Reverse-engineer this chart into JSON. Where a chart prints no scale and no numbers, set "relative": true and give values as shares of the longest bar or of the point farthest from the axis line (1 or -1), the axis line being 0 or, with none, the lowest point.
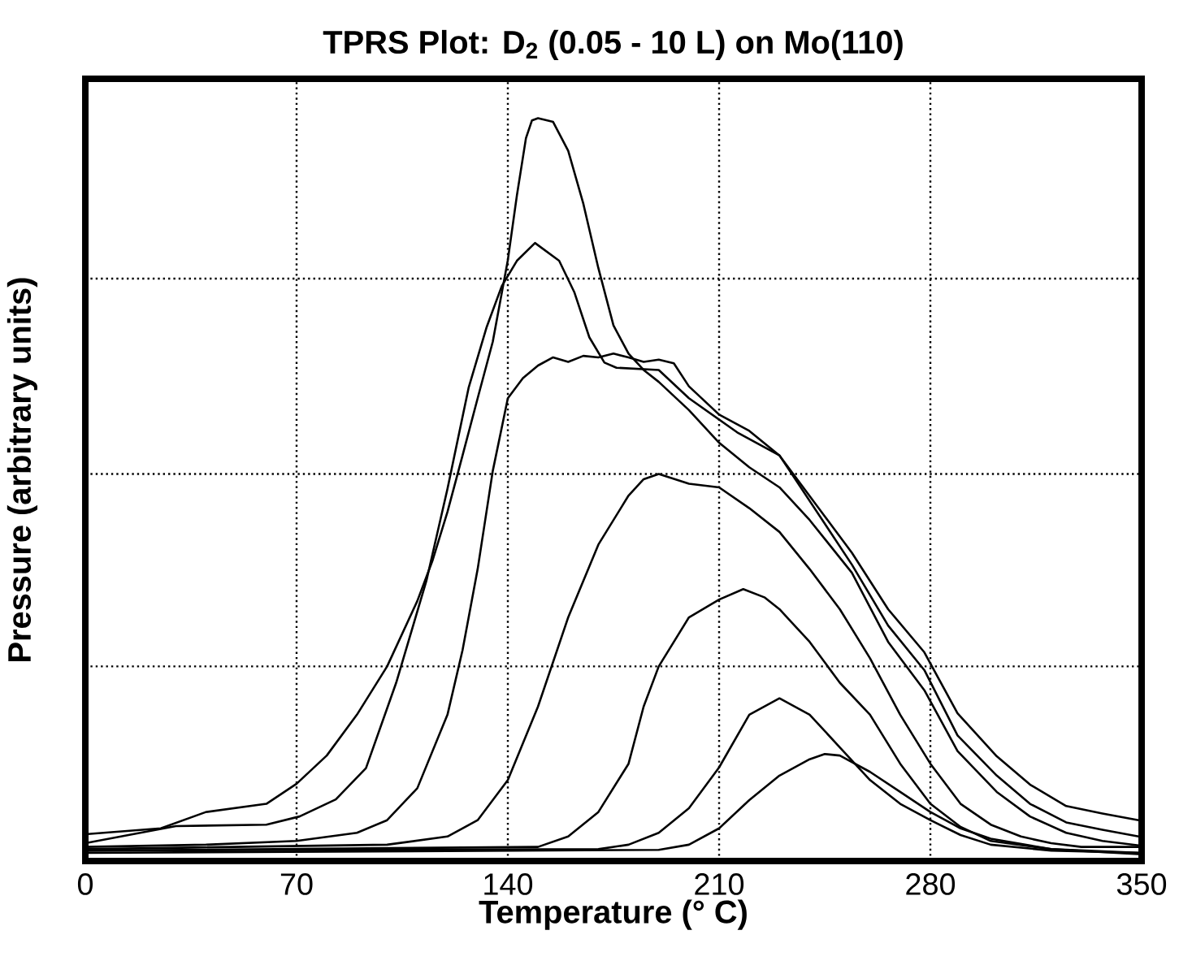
{
  "chart_data": {
    "type": "line",
    "title": "TPRS Plot: D$_{2}$ (0.05 - 10 L) on Mo(110)",
    "xlabel": "Temperature (° C)",
    "ylabel": "Pressure (arbitrary units)",
    "relative": true,
    "xlim": [
      0,
      350
    ],
    "xticks": [
      0,
      70,
      140,
      210,
      280,
      350
    ],
    "grid": "x",
    "line_style": "solid",
    "marker": "none",
    "ref_lines": [
      {
        "axis": "y",
        "value": 0.262,
        "color": "#000000",
        "line_style": "dotted"
      },
      {
        "axis": "y",
        "value": 0.521,
        "color": "#000000",
        "line_style": "dotted"
      },
      {
        "axis": "y",
        "value": 0.784,
        "color": "#000000",
        "line_style": "dotted"
      }
    ],
    "series": [
      {
        "color": "#000000",
        "x": [
          0,
          25,
          40,
          60,
          70,
          80,
          90,
          100,
          110,
          115,
          120,
          125,
          130,
          135,
          140,
          143,
          146,
          148,
          150,
          155,
          160,
          165,
          170,
          175,
          180,
          185,
          190,
          200,
          210,
          220,
          230,
          240,
          254,
          266,
          278,
          289,
          302,
          313,
          325,
          337,
          349
        ],
        "values": [
          0.036,
          0.044,
          0.066,
          0.077,
          0.104,
          0.142,
          0.197,
          0.262,
          0.35,
          0.404,
          0.47,
          0.546,
          0.623,
          0.699,
          0.809,
          0.896,
          0.973,
          0.997,
          1.0,
          0.995,
          0.956,
          0.885,
          0.798,
          0.721,
          0.683,
          0.661,
          0.645,
          0.607,
          0.563,
          0.53,
          0.503,
          0.459,
          0.388,
          0.295,
          0.23,
          0.148,
          0.093,
          0.06,
          0.038,
          0.027,
          0.021
        ]
      },
      {
        "color": "#000000",
        "x": [
          0,
          30,
          60,
          71,
          83,
          93,
          103,
          113,
          120,
          127,
          133,
          138,
          143,
          149,
          157,
          162,
          167,
          172,
          176,
          190,
          200,
          216,
          230,
          254,
          266,
          278,
          289,
          302,
          313,
          325,
          337,
          349
        ],
        "values": [
          0.024,
          0.047,
          0.049,
          0.06,
          0.083,
          0.125,
          0.24,
          0.377,
          0.501,
          0.637,
          0.719,
          0.774,
          0.808,
          0.832,
          0.808,
          0.766,
          0.705,
          0.671,
          0.664,
          0.661,
          0.623,
          0.577,
          0.546,
          0.399,
          0.317,
          0.257,
          0.169,
          0.115,
          0.077,
          0.052,
          0.042,
          0.033
        ]
      },
      {
        "color": "#000000",
        "x": [
          0,
          40,
          70,
          90,
          100,
          110,
          120,
          125,
          130,
          135,
          140,
          145,
          150,
          155,
          160,
          165,
          170,
          175,
          180,
          185,
          190,
          195,
          200,
          210,
          220,
          230,
          254,
          266,
          278,
          289,
          302,
          313,
          325,
          337,
          349
        ],
        "values": [
          0.019,
          0.022,
          0.027,
          0.038,
          0.055,
          0.098,
          0.197,
          0.284,
          0.393,
          0.525,
          0.623,
          0.65,
          0.667,
          0.678,
          0.672,
          0.68,
          0.678,
          0.683,
          0.678,
          0.672,
          0.675,
          0.67,
          0.639,
          0.601,
          0.579,
          0.546,
          0.415,
          0.339,
          0.281,
          0.199,
          0.141,
          0.103,
          0.074,
          0.064,
          0.055
        ]
      },
      {
        "color": "#000000",
        "x": [
          0,
          100,
          120,
          130,
          140,
          150,
          160,
          170,
          180,
          185,
          190,
          200,
          210,
          220,
          230,
          240,
          250,
          260,
          270,
          280,
          290,
          300,
          310,
          320,
          330,
          350
        ],
        "values": [
          0.016,
          0.022,
          0.033,
          0.055,
          0.109,
          0.208,
          0.328,
          0.426,
          0.492,
          0.514,
          0.521,
          0.508,
          0.503,
          0.475,
          0.443,
          0.393,
          0.339,
          0.273,
          0.197,
          0.131,
          0.077,
          0.049,
          0.033,
          0.024,
          0.019,
          0.019
        ]
      },
      {
        "color": "#000000",
        "x": [
          0,
          150,
          160,
          170,
          180,
          185,
          190,
          200,
          210,
          218,
          225,
          230,
          240,
          250,
          260,
          270,
          280,
          290,
          300,
          320,
          350
        ],
        "values": [
          0.014,
          0.019,
          0.033,
          0.066,
          0.131,
          0.208,
          0.262,
          0.328,
          0.352,
          0.366,
          0.355,
          0.339,
          0.295,
          0.24,
          0.197,
          0.131,
          0.077,
          0.046,
          0.027,
          0.016,
          0.011
        ]
      },
      {
        "color": "#000000",
        "x": [
          0,
          170,
          180,
          190,
          200,
          210,
          220,
          230,
          240,
          250,
          260,
          270,
          280,
          290,
          300,
          320,
          350
        ],
        "values": [
          0.014,
          0.016,
          0.022,
          0.038,
          0.071,
          0.126,
          0.197,
          0.219,
          0.197,
          0.153,
          0.109,
          0.077,
          0.055,
          0.035,
          0.022,
          0.014,
          0.011
        ]
      },
      {
        "color": "#000000",
        "x": [
          0,
          190,
          200,
          210,
          220,
          230,
          240,
          245,
          250,
          260,
          270,
          280,
          290,
          300,
          320,
          350
        ],
        "values": [
          0.011,
          0.015,
          0.022,
          0.044,
          0.082,
          0.115,
          0.137,
          0.144,
          0.142,
          0.12,
          0.093,
          0.066,
          0.044,
          0.03,
          0.016,
          0.009
        ]
      }
    ]
  }
}
